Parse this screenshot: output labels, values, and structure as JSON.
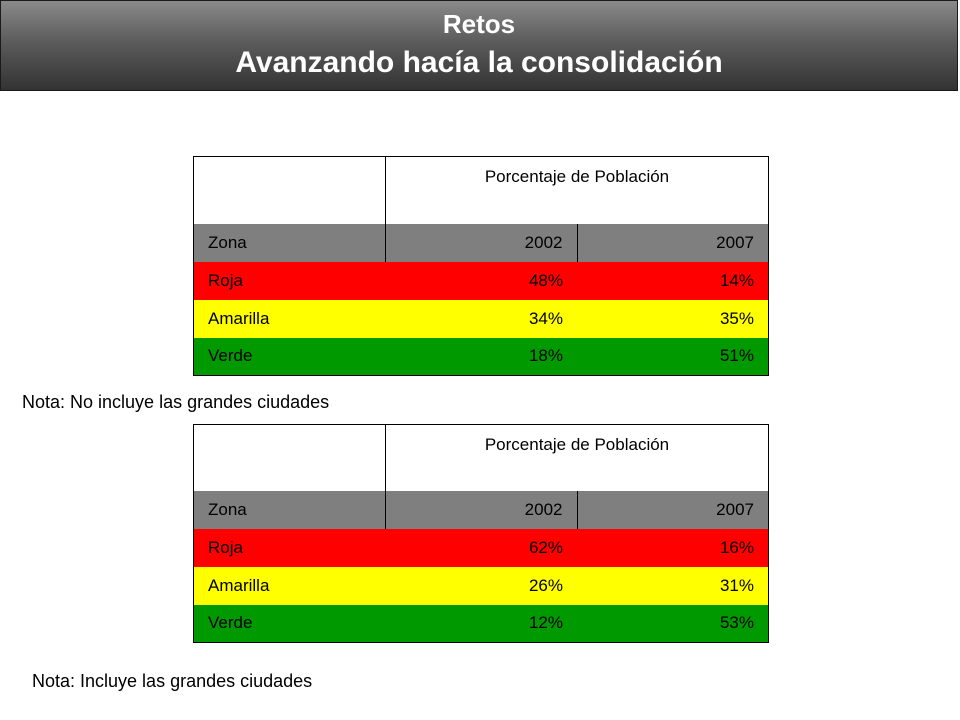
{
  "header": {
    "title": "Retos",
    "subtitle": "Avanzando hacía la consolidación"
  },
  "tables": [
    {
      "column_group_label": "Porcentaje de Población",
      "columns": [
        "Zona",
        "2002",
        "2007"
      ],
      "rows": [
        {
          "zona": "Roja",
          "y2002": "48%",
          "y2007": "14%"
        },
        {
          "zona": "Amarilla",
          "y2002": "34%",
          "y2007": "35%"
        },
        {
          "zona": "Verde",
          "y2002": "18%",
          "y2007": "51%"
        }
      ],
      "note": "Nota: No incluye las grandes ciudades"
    },
    {
      "column_group_label": "Porcentaje de Población",
      "columns": [
        "Zona",
        "2002",
        "2007"
      ],
      "rows": [
        {
          "zona": "Roja",
          "y2002": "62%",
          "y2007": "16%"
        },
        {
          "zona": "Amarilla",
          "y2002": "26%",
          "y2007": "31%"
        },
        {
          "zona": "Verde",
          "y2002": "12%",
          "y2007": "53%"
        }
      ],
      "note": "Nota: Incluye las grandes ciudades"
    }
  ],
  "colors": {
    "roja": "#ff0000",
    "amarilla": "#ffff00",
    "verde": "#009900",
    "header_row": "#7f7f7f"
  }
}
